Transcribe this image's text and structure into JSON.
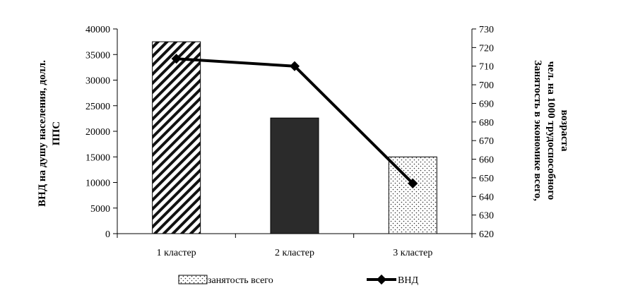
{
  "chart_data": {
    "type": "bar",
    "categories": [
      "1 кластер",
      "2 кластер",
      "3 кластер"
    ],
    "y_left": {
      "label_lines": [
        "ВНД на душу населения, долл.",
        "ППС"
      ],
      "ticks": [
        "0",
        "5000",
        "10000",
        "15000",
        "20000",
        "25000",
        "30000",
        "35000",
        "40000"
      ],
      "ylim": [
        0,
        40000
      ]
    },
    "y_right": {
      "label_lines": [
        "Занятость  в экономике  всего,",
        "чел. на 1000 трудоспособного",
        "возраста"
      ],
      "ticks": [
        "620",
        "630",
        "640",
        "650",
        "660",
        "670",
        "680",
        "690",
        "700",
        "710",
        "720",
        "730"
      ],
      "ylim": [
        620,
        730
      ]
    },
    "series": [
      {
        "name": "занятость всего",
        "kind": "bar",
        "axis": "left",
        "values": [
          37500,
          22600,
          15000
        ],
        "fills": [
          "hatch",
          "solid",
          "dots"
        ]
      },
      {
        "name": "ВНД",
        "kind": "line",
        "axis": "right",
        "values": [
          714,
          710,
          647
        ]
      }
    ],
    "legend": [
      "занятость всего",
      "ВНД"
    ],
    "legend_position": "bottom",
    "grid": false
  }
}
